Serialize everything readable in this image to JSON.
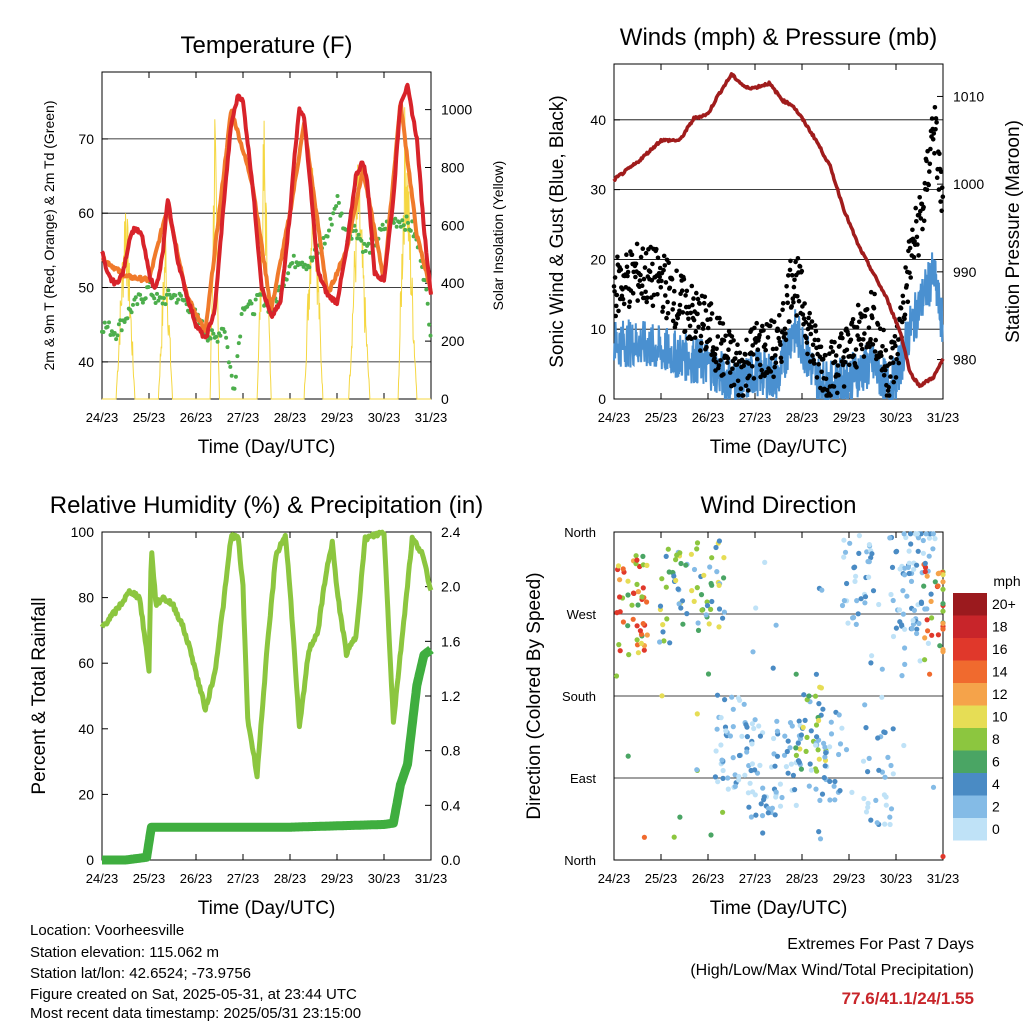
{
  "chart_data": [
    {
      "id": "temperature",
      "type": "line",
      "title": "Temperature (F)",
      "xlabel": "Time (Day/UTC)",
      "ylabel": "2m & 9m T (Red, Orange) & 2m Td (Green)",
      "y2label": "Solar Insolation (Yellow)",
      "x_ticks": [
        "24/23",
        "25/23",
        "26/23",
        "27/23",
        "28/23",
        "29/23",
        "30/23",
        "31/23"
      ],
      "ylim": [
        35,
        79
      ],
      "y_ticks": [
        40,
        50,
        60,
        70
      ],
      "y2lim": [
        0,
        1130
      ],
      "y2_ticks": [
        0,
        200,
        400,
        600,
        800,
        1000
      ],
      "grid": true,
      "colors": {
        "t2m": "#d8232a",
        "t9m": "#f07a2b",
        "td": "#4cae4c",
        "solar": "#f5d742"
      },
      "series": [
        {
          "key": "t2m",
          "x": [
            0,
            0.1,
            0.2,
            0.3,
            0.45,
            0.6,
            0.7,
            0.85,
            1.0,
            1.1,
            1.2,
            1.3,
            1.4,
            1.6,
            1.8,
            2.0,
            2.2,
            2.4,
            2.6,
            2.75,
            2.9,
            3.0,
            3.2,
            3.4,
            3.6,
            3.8,
            4.0,
            4.1,
            4.2,
            4.3,
            4.4,
            4.6,
            4.8,
            5.0,
            5.2,
            5.4,
            5.55,
            5.65,
            5.8,
            6.0,
            6.2,
            6.35,
            6.5,
            6.7,
            6.85,
            7.0
          ],
          "values": [
            55,
            52,
            51,
            50.5,
            52,
            57,
            58,
            57,
            52,
            50,
            51,
            55,
            62,
            54,
            49,
            45,
            43,
            47,
            62,
            72,
            76,
            75,
            64,
            50,
            46,
            48,
            60,
            68,
            74,
            73,
            66,
            52,
            49,
            48,
            55,
            65,
            67,
            64,
            52,
            51,
            62,
            75,
            77,
            70,
            58,
            49
          ]
        },
        {
          "key": "t9m",
          "x": [
            0,
            0.5,
            1.0,
            1.4,
            1.8,
            2.2,
            2.75,
            3.2,
            3.6,
            4.0,
            4.3,
            4.8,
            5.2,
            5.55,
            6.0,
            6.35,
            6.7,
            7.0
          ],
          "values": [
            54,
            51.5,
            51,
            61,
            49,
            44,
            74,
            64,
            47,
            60,
            72,
            49,
            55,
            66,
            51,
            75,
            57,
            49.5
          ]
        },
        {
          "key": "td",
          "x": [
            0,
            0.3,
            0.6,
            0.9,
            1.0,
            1.2,
            1.5,
            1.8,
            2.0,
            2.2,
            2.4,
            2.6,
            2.8,
            3.0,
            3.2,
            3.4,
            3.6,
            3.8,
            4.0,
            4.2,
            4.4,
            4.6,
            4.8,
            5.0,
            5.2,
            5.4,
            5.6,
            5.8,
            6.0,
            6.2,
            6.4,
            6.6,
            6.8,
            7.0
          ],
          "values": [
            45,
            44,
            47,
            49,
            50,
            48,
            49,
            48,
            46,
            44,
            43,
            45,
            36,
            48,
            47,
            49,
            47,
            50,
            53,
            54,
            53,
            55,
            57,
            62,
            57,
            58,
            55,
            56,
            58,
            59,
            59,
            58,
            54,
            44
          ]
        },
        {
          "key": "solar",
          "x": [
            0,
            0.3,
            0.5,
            0.7,
            1.0,
            1.2,
            1.35,
            1.5,
            1.7,
            2.0,
            2.3,
            2.4,
            2.5,
            2.7,
            3.0,
            3.3,
            3.45,
            3.6,
            3.8,
            4.0,
            4.3,
            4.5,
            4.7,
            5.0,
            5.25,
            5.45,
            5.7,
            6.0,
            6.3,
            6.45,
            6.7,
            7.0
          ],
          "values": [
            0,
            0,
            800,
            0,
            0,
            0,
            640,
            0,
            0,
            0,
            0,
            1080,
            0,
            0,
            0,
            0,
            1020,
            0,
            0,
            0,
            0,
            980,
            0,
            0,
            0,
            890,
            0,
            0,
            0,
            1100,
            0,
            0
          ]
        }
      ]
    },
    {
      "id": "winds",
      "type": "scatter",
      "title": "Winds (mph) & Pressure (mb)",
      "xlabel": "Time (Day/UTC)",
      "ylabel": "Sonic Wind & Gust (Blue, Black)",
      "y2label": "Station Pressure (Maroon)",
      "x_ticks": [
        "24/23",
        "25/23",
        "26/23",
        "27/23",
        "28/23",
        "29/23",
        "30/23",
        "31/23"
      ],
      "ylim": [
        0,
        48
      ],
      "y_ticks": [
        0,
        10,
        20,
        30,
        40
      ],
      "y2lim": [
        975.5,
        1013.7
      ],
      "y2_ticks": [
        980,
        990,
        1000,
        1010
      ],
      "grid": true,
      "colors": {
        "wind": "#4a90d0",
        "gust": "#000000",
        "pressure": "#a01c1c"
      },
      "series": [
        {
          "key": "pressure",
          "x": [
            0,
            0.5,
            1.0,
            1.4,
            1.7,
            2.0,
            2.2,
            2.5,
            2.8,
            3.0,
            3.3,
            3.6,
            3.8,
            4.0,
            4.3,
            4.6,
            4.9,
            5.2,
            5.5,
            5.8,
            6.1,
            6.3,
            6.5,
            6.8,
            7.0
          ],
          "values": [
            1000.5,
            1002.5,
            1005,
            1005,
            1007.5,
            1008,
            1010,
            1012.5,
            1011,
            1011,
            1011.5,
            1009.5,
            1009,
            1007.5,
            1005,
            1002,
            997,
            993,
            990,
            987,
            983,
            978.5,
            977,
            978,
            980
          ]
        },
        {
          "key": "wind_env",
          "x": [
            0,
            0.5,
            1.0,
            1.5,
            2.0,
            2.4,
            2.7,
            3.0,
            3.5,
            3.8,
            4.0,
            4.3,
            4.6,
            5.0,
            5.5,
            5.8,
            6.0,
            6.3,
            6.6,
            6.8,
            7.0
          ],
          "values": [
            8,
            8,
            7,
            6,
            5,
            3,
            2,
            4,
            3,
            10,
            8,
            3,
            2,
            3,
            5,
            2,
            3,
            10,
            15,
            18,
            10
          ]
        },
        {
          "key": "gust_env",
          "x": [
            0,
            0.5,
            1.0,
            1.5,
            2.0,
            2.4,
            2.7,
            3.0,
            3.5,
            3.8,
            4.0,
            4.3,
            4.6,
            5.0,
            5.5,
            5.8,
            6.0,
            6.3,
            6.6,
            6.8,
            7.0
          ],
          "values": [
            16,
            18,
            17,
            13,
            10,
            6,
            4,
            7,
            7,
            18,
            14,
            6,
            4,
            7,
            12,
            4,
            6,
            20,
            28,
            40,
            27
          ]
        }
      ]
    },
    {
      "id": "humidity",
      "type": "line",
      "title": "Relative Humidity (%) & Precipitation (in)",
      "xlabel": "Time (Day/UTC)",
      "ylabel": "Percent & Total Rainfall",
      "x_ticks": [
        "24/23",
        "25/23",
        "26/23",
        "27/23",
        "28/23",
        "29/23",
        "30/23",
        "31/23"
      ],
      "ylim": [
        0,
        100
      ],
      "y_ticks": [
        0,
        20,
        40,
        60,
        80,
        100
      ],
      "y2lim": [
        0,
        2.4
      ],
      "y2_ticks": [
        "0.0",
        "0.4",
        "0.8",
        "1.2",
        "1.6",
        "2.0",
        "2.4"
      ],
      "grid": false,
      "colors": {
        "rh": "#8cc63f",
        "precip": "#3fae3f"
      },
      "series": [
        {
          "key": "rh",
          "x": [
            0,
            0.3,
            0.5,
            0.6,
            0.8,
            1.0,
            1.05,
            1.15,
            1.3,
            1.5,
            1.7,
            1.9,
            2.0,
            2.2,
            2.4,
            2.6,
            2.75,
            2.9,
            3.0,
            3.1,
            3.3,
            3.5,
            3.7,
            3.9,
            4.0,
            4.2,
            4.4,
            4.6,
            4.75,
            4.9,
            5.0,
            5.2,
            5.4,
            5.6,
            5.8,
            6.0,
            6.2,
            6.4,
            6.6,
            6.8,
            7.0
          ],
          "values": [
            71,
            76,
            80,
            82,
            80,
            58,
            95,
            78,
            80,
            78,
            72,
            63,
            57,
            46,
            57,
            80,
            99,
            98,
            83,
            43,
            26,
            62,
            93,
            99,
            83,
            40,
            64,
            70,
            86,
            97,
            82,
            63,
            68,
            98,
            99,
            100,
            42,
            70,
            98,
            94,
            82
          ]
        },
        {
          "key": "precip",
          "x": [
            0,
            0.5,
            0.95,
            1.05,
            2.0,
            3.0,
            4.0,
            5.0,
            6.0,
            6.2,
            6.35,
            6.5,
            6.7,
            6.85,
            7.0
          ],
          "values": [
            0,
            0,
            0.02,
            0.24,
            0.24,
            0.24,
            0.24,
            0.25,
            0.26,
            0.27,
            0.55,
            0.7,
            1.28,
            1.5,
            1.54
          ]
        }
      ]
    },
    {
      "id": "wind_direction",
      "type": "scatter",
      "title": "Wind Direction",
      "xlabel": "Time (Day/UTC)",
      "ylabel": "Direction (Colored By Speed)",
      "x_ticks": [
        "24/23",
        "25/23",
        "26/23",
        "27/23",
        "28/23",
        "29/23",
        "30/23",
        "31/23"
      ],
      "y_ticks": [
        "North",
        "West",
        "South",
        "East",
        "North"
      ],
      "grid": true,
      "legend_title": "mph",
      "legend_labels": [
        "20+",
        "18",
        "16",
        "14",
        "12",
        "10",
        "8",
        "6",
        "4",
        "2",
        "0"
      ],
      "legend_colors": [
        "#9b1a1e",
        "#c8252a",
        "#e0382b",
        "#f06a2e",
        "#f5a34a",
        "#e6dd55",
        "#8cc63f",
        "#4aa564",
        "#4a8bc4",
        "#84bbe6",
        "#bfe2f7"
      ],
      "series": [
        {
          "key": "dir_clusters",
          "x": [
            0.4,
            1.3,
            2.0,
            2.5,
            3.2,
            3.7,
            4.2,
            4.5,
            5.2,
            5.6,
            6.2,
            6.5,
            6.9
          ],
          "values": [
            280,
            290,
            300,
            130,
            100,
            110,
            150,
            120,
            310,
            90,
            300,
            330,
            270
          ]
        }
      ]
    }
  ],
  "footer": {
    "location": "Location: Voorheesville",
    "elevation": "Station elevation: 115.062 m",
    "latlon": "Station lat/lon: 42.6524; -73.9756",
    "created": "Figure created on Sat, 2025-05-31, at 23:44 UTC",
    "recent": "Most recent data timestamp: 2025/05/31 23:15:00"
  },
  "extremes": {
    "title": "Extremes For Past 7 Days",
    "subtitle": "(High/Low/Max Wind/Total Precipitation)",
    "values": "77.6/41.1/24/1.55"
  }
}
